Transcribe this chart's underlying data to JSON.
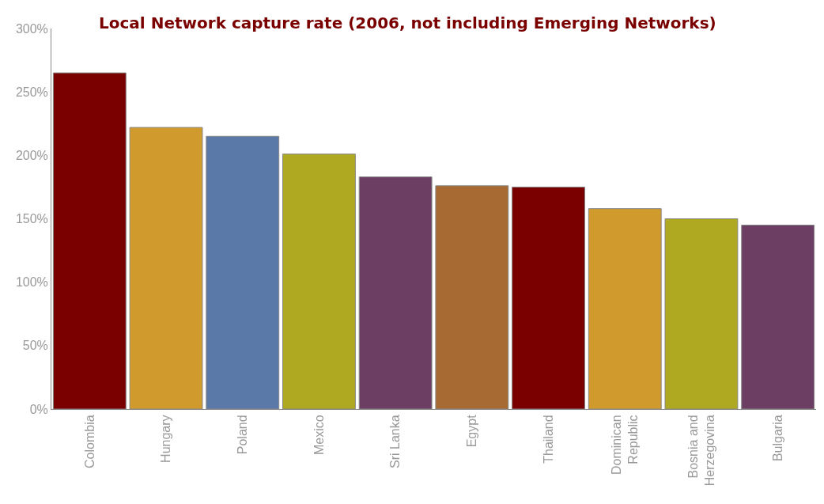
{
  "chart_data": {
    "type": "bar",
    "title": "Local Network capture rate (2006, not including Emerging Networks)",
    "categories": [
      "Colombia",
      "Hungary",
      "Poland",
      "Mexico",
      "Sri Lanka",
      "Egypt",
      "Thailand",
      "Dominican Republic",
      "Bosnia and Herzegovina",
      "Bulgaria"
    ],
    "values": [
      265,
      222,
      215,
      201,
      183,
      176,
      175,
      158,
      150,
      145
    ],
    "colors": [
      "#7a0000",
      "#d09a2c",
      "#5b79a8",
      "#afa821",
      "#6c3e63",
      "#a76a33",
      "#7a0000",
      "#d09a2c",
      "#afa821",
      "#6c3e63"
    ],
    "ylim": [
      0,
      300
    ],
    "yticks": [
      {
        "value": 0,
        "label": "0%"
      },
      {
        "value": 50,
        "label": "50%"
      },
      {
        "value": 100,
        "label": "100%"
      },
      {
        "value": 150,
        "label": "150%"
      },
      {
        "value": 200,
        "label": "200%"
      },
      {
        "value": 250,
        "label": "250%"
      },
      {
        "value": 300,
        "label": "300%"
      }
    ]
  }
}
